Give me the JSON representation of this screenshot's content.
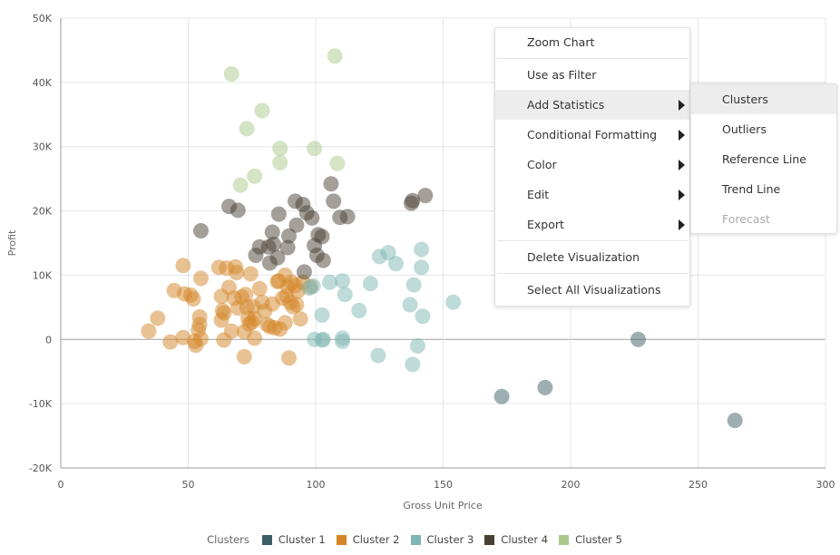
{
  "chart_data": {
    "type": "scatter",
    "title": "",
    "xlabel": "Gross Unit Price",
    "ylabel": "Profit",
    "xlim": [
      0,
      300
    ],
    "ylim": [
      -20000,
      50000
    ],
    "x_ticks": [
      0,
      50,
      100,
      150,
      200,
      250,
      300
    ],
    "x_tick_labels": [
      "0",
      "50",
      "100",
      "150",
      "200",
      "250",
      "300"
    ],
    "y_ticks": [
      -20000,
      -10000,
      0,
      10000,
      20000,
      30000,
      40000,
      50000
    ],
    "y_tick_labels": [
      "-20K",
      "-10K",
      "0",
      "10K",
      "20K",
      "30K",
      "40K",
      "50K"
    ],
    "grid": true,
    "legend_title": "Clusters",
    "legend_position": "bottom",
    "series": [
      {
        "name": "Cluster 1",
        "color": "#3c5f66",
        "points": [
          [
            173,
            -8900
          ],
          [
            190,
            -7500
          ],
          [
            226.5,
            0
          ],
          [
            264.5,
            -12600
          ]
        ]
      },
      {
        "name": "Cluster 2",
        "color": "#d38527",
        "points": [
          [
            34.5,
            1300
          ],
          [
            38,
            3300
          ],
          [
            43,
            -400
          ],
          [
            44.5,
            7600
          ],
          [
            48,
            11500
          ],
          [
            48,
            300
          ],
          [
            48.5,
            7100
          ],
          [
            51,
            6900
          ],
          [
            52,
            6300
          ],
          [
            52.5,
            -300
          ],
          [
            53,
            -900
          ],
          [
            54,
            1500
          ],
          [
            54.5,
            2300
          ],
          [
            54.5,
            3500
          ],
          [
            55,
            9500
          ],
          [
            55,
            100
          ],
          [
            62,
            11200
          ],
          [
            63,
            6700
          ],
          [
            63,
            3000
          ],
          [
            63.5,
            4500
          ],
          [
            64,
            4100
          ],
          [
            64,
            -100
          ],
          [
            65,
            11100
          ],
          [
            66,
            8100
          ],
          [
            67,
            1300
          ],
          [
            68,
            6400
          ],
          [
            68.5,
            11300
          ],
          [
            69,
            10400
          ],
          [
            69.5,
            4900
          ],
          [
            71,
            6600
          ],
          [
            72,
            -2700
          ],
          [
            72,
            1200
          ],
          [
            72.5,
            7000
          ],
          [
            73,
            5000
          ],
          [
            73.5,
            3300
          ],
          [
            74,
            2400
          ],
          [
            74.5,
            10200
          ],
          [
            75,
            2700
          ],
          [
            75.5,
            5100
          ],
          [
            76,
            3200
          ],
          [
            76,
            200
          ],
          [
            78,
            7900
          ],
          [
            79,
            5800
          ],
          [
            80,
            4400
          ],
          [
            81,
            2300
          ],
          [
            82,
            2000
          ],
          [
            83,
            5500
          ],
          [
            84,
            1800
          ],
          [
            85,
            9000
          ],
          [
            85.5,
            9100
          ],
          [
            86,
            1600
          ],
          [
            87,
            6400
          ],
          [
            88,
            10000
          ],
          [
            88,
            2600
          ],
          [
            88.5,
            6800
          ],
          [
            89,
            8200
          ],
          [
            89.5,
            -2900
          ],
          [
            90,
            5800
          ],
          [
            90.5,
            8900
          ],
          [
            91,
            5100
          ],
          [
            92,
            8400
          ],
          [
            92.5,
            5400
          ],
          [
            93,
            7500
          ],
          [
            94,
            3200
          ],
          [
            95,
            8900
          ],
          [
            98,
            8200
          ]
        ]
      },
      {
        "name": "Cluster 3",
        "color": "#7db6b3",
        "points": [
          [
            97.5,
            8000
          ],
          [
            99,
            8300
          ],
          [
            99.5,
            0
          ],
          [
            102.5,
            -100
          ],
          [
            102.5,
            3800
          ],
          [
            103,
            0
          ],
          [
            105.5,
            8900
          ],
          [
            110.5,
            9100
          ],
          [
            110.5,
            200
          ],
          [
            110.5,
            -300
          ],
          [
            111.5,
            7000
          ],
          [
            117,
            4500
          ],
          [
            121.5,
            8700
          ],
          [
            124.5,
            -2500
          ],
          [
            125,
            12900
          ],
          [
            128.5,
            13500
          ],
          [
            131.5,
            11800
          ],
          [
            137,
            5400
          ],
          [
            138,
            -3900
          ],
          [
            138.5,
            8500
          ],
          [
            140,
            -1000
          ],
          [
            141.5,
            11200
          ],
          [
            141.5,
            14000
          ],
          [
            142,
            3600
          ],
          [
            154,
            5800
          ]
        ]
      },
      {
        "name": "Cluster 4",
        "color": "#4a3f34",
        "points": [
          [
            55,
            16900
          ],
          [
            66,
            20700
          ],
          [
            69.5,
            20100
          ],
          [
            76.5,
            13100
          ],
          [
            78,
            14400
          ],
          [
            81.5,
            14400
          ],
          [
            82,
            11900
          ],
          [
            83,
            16700
          ],
          [
            83.5,
            14800
          ],
          [
            85,
            12700
          ],
          [
            85.5,
            19500
          ],
          [
            89,
            14300
          ],
          [
            89.5,
            16100
          ],
          [
            92,
            21500
          ],
          [
            92.5,
            17800
          ],
          [
            95,
            21000
          ],
          [
            95.5,
            10500
          ],
          [
            96.5,
            19700
          ],
          [
            98.5,
            18900
          ],
          [
            99.5,
            14600
          ],
          [
            100.5,
            13100
          ],
          [
            101,
            16300
          ],
          [
            102.5,
            16000
          ],
          [
            103,
            12300
          ],
          [
            106,
            24200
          ],
          [
            107,
            21500
          ],
          [
            109.5,
            19000
          ],
          [
            112.5,
            19100
          ],
          [
            137.5,
            21200
          ],
          [
            138,
            21600
          ],
          [
            143,
            22400
          ]
        ]
      },
      {
        "name": "Cluster 5",
        "color": "#a9c98c",
        "points": [
          [
            67,
            41300
          ],
          [
            107.5,
            44100
          ],
          [
            73,
            32800
          ],
          [
            79,
            35600
          ],
          [
            86,
            29700
          ],
          [
            99.5,
            29700
          ],
          [
            86,
            27500
          ],
          [
            108.5,
            27400
          ],
          [
            76,
            25400
          ],
          [
            70.5,
            24000
          ]
        ]
      }
    ]
  },
  "context_menu": {
    "items": [
      {
        "label": "Zoom Chart",
        "submenu": false
      },
      {
        "label": "Use as Filter",
        "submenu": false
      },
      {
        "label": "Add Statistics",
        "submenu": true,
        "active": true
      },
      {
        "label": "Conditional Formatting",
        "submenu": true
      },
      {
        "label": "Color",
        "submenu": true
      },
      {
        "label": "Edit",
        "submenu": true
      },
      {
        "label": "Export",
        "submenu": true
      },
      {
        "label": "Delete Visualization",
        "submenu": false
      },
      {
        "label": "Select All Visualizations",
        "submenu": false
      }
    ]
  },
  "submenu": {
    "items": [
      {
        "label": "Clusters",
        "active": true
      },
      {
        "label": "Outliers"
      },
      {
        "label": "Reference Line"
      },
      {
        "label": "Trend Line"
      },
      {
        "label": "Forecast",
        "disabled": true
      }
    ]
  }
}
